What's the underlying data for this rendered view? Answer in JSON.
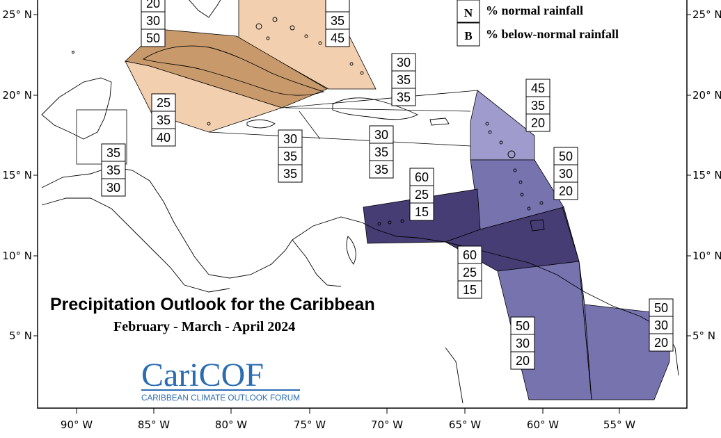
{
  "title": "Precipitation Outlook for the Caribbean",
  "subtitle": "February - March - April 2024",
  "logo": {
    "name": "CariCOF",
    "full_name": "CARIBBEAN CLIMATE OUTLOOK FORUM"
  },
  "legend": {
    "items": [
      {
        "key": "N",
        "text": "% normal rainfall"
      },
      {
        "key": "B",
        "text": "% below-normal rainfall"
      }
    ]
  },
  "axes": {
    "lon_labels": [
      "90° W",
      "85° W",
      "80° W",
      "75° W",
      "70° W",
      "65° W",
      "60° W",
      "55° W"
    ],
    "lat_labels": [
      "25° N",
      "20° N",
      "15° N",
      "10° N",
      "5° N"
    ]
  },
  "colors": {
    "cat_40_45_below": "#f2cfae",
    "cat_50_below": "#c89a6b",
    "cat_45_above": "#9f9bcc",
    "cat_50_above": "#7673ae",
    "cat_60_above": "#463d74"
  },
  "forecast_boxes": [
    {
      "id": "bahamas-north",
      "values": [
        "",
        "35",
        "45"
      ]
    },
    {
      "id": "cuba-north",
      "values": [
        "20",
        "30",
        "50"
      ]
    },
    {
      "id": "turks-caicos",
      "values": [
        "30",
        "35",
        "35"
      ]
    },
    {
      "id": "cuba-south",
      "values": [
        "25",
        "35",
        "40"
      ]
    },
    {
      "id": "belize",
      "values": [
        "35",
        "35",
        "30"
      ]
    },
    {
      "id": "jamaica",
      "values": [
        "30",
        "35",
        "35"
      ]
    },
    {
      "id": "hispaniola-south",
      "values": [
        "30",
        "35",
        "35"
      ]
    },
    {
      "id": "leeward-islands",
      "values": [
        "45",
        "35",
        "20"
      ]
    },
    {
      "id": "windward-islands",
      "values": [
        "50",
        "30",
        "20"
      ]
    },
    {
      "id": "abc-islands",
      "values": [
        "60",
        "25",
        "15"
      ]
    },
    {
      "id": "trinidad-venezuela",
      "values": [
        "60",
        "25",
        "15"
      ]
    },
    {
      "id": "guyana",
      "values": [
        "50",
        "30",
        "20"
      ]
    },
    {
      "id": "suriname-guiana",
      "values": [
        "50",
        "30",
        "20"
      ]
    }
  ]
}
